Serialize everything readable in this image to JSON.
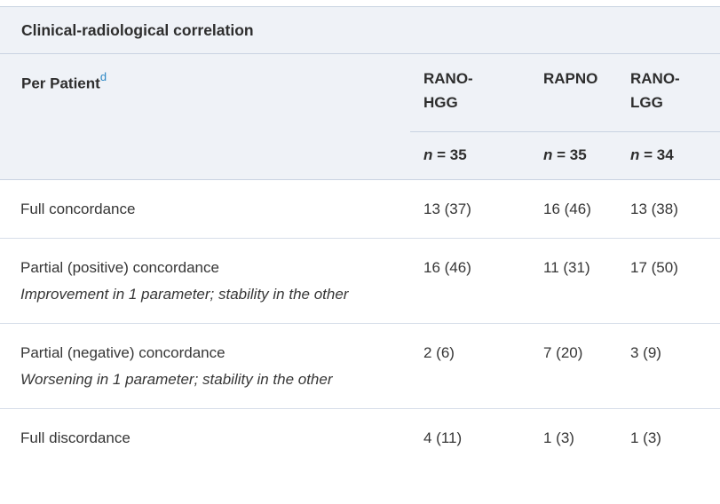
{
  "table": {
    "title": "Clinical-radiological correlation",
    "row_header": {
      "label": "Per Patient",
      "footnote_marker": "d"
    },
    "columns": [
      {
        "label": "RANO-HGG",
        "n_italic": "n",
        "n_rest": " = 35"
      },
      {
        "label": "RAPNO",
        "n_italic": "n",
        "n_rest": " = 35"
      },
      {
        "label": "RANO-LGG",
        "n_italic": "n",
        "n_rest": " = 34"
      }
    ],
    "rows": [
      {
        "label": "Full concordance",
        "note": "",
        "values": [
          "13 (37)",
          "16 (46)",
          "13 (38)"
        ]
      },
      {
        "label": "Partial (positive) concordance",
        "note": "Improvement in 1 parameter; stability in the other",
        "values": [
          "16 (46)",
          "11 (31)",
          "17 (50)"
        ]
      },
      {
        "label": "Partial (negative) concordance",
        "note": "Worsening in 1 parameter; stability in the other",
        "values": [
          "2 (6)",
          "7 (20)",
          "3 (9)"
        ]
      },
      {
        "label": "Full discordance",
        "note": "",
        "values": [
          "4 (11)",
          "1 (3)",
          "1 (3)"
        ]
      }
    ],
    "colors": {
      "header_bg": "#eff2f7",
      "header_border": "#c9d3e1",
      "body_border": "#d7dee9",
      "text": "#363636",
      "footnote_link": "#2b87c4"
    }
  }
}
